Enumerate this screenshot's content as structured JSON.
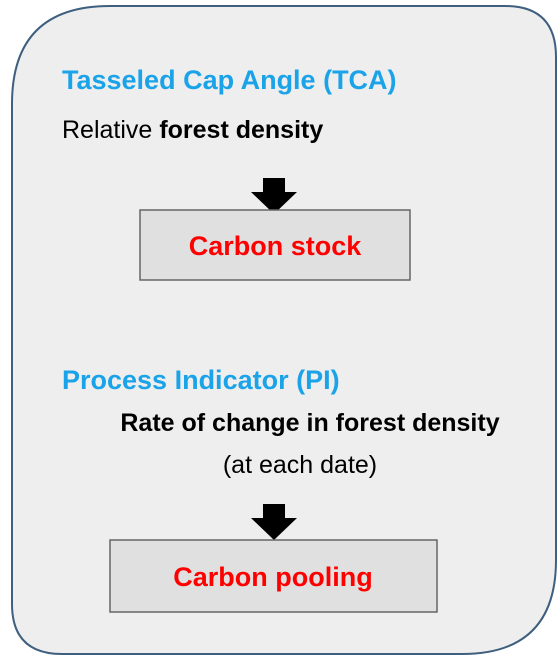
{
  "sections": [
    {
      "title": "Tasseled Cap Angle (TCA)",
      "description": [
        "Relative",
        "forest density"
      ],
      "result": "Carbon stock"
    },
    {
      "title": "Process Indicator (PI)",
      "description": [
        "Rate of change in forest density",
        "(at each date)"
      ],
      "result": "Carbon pooling"
    }
  ]
}
